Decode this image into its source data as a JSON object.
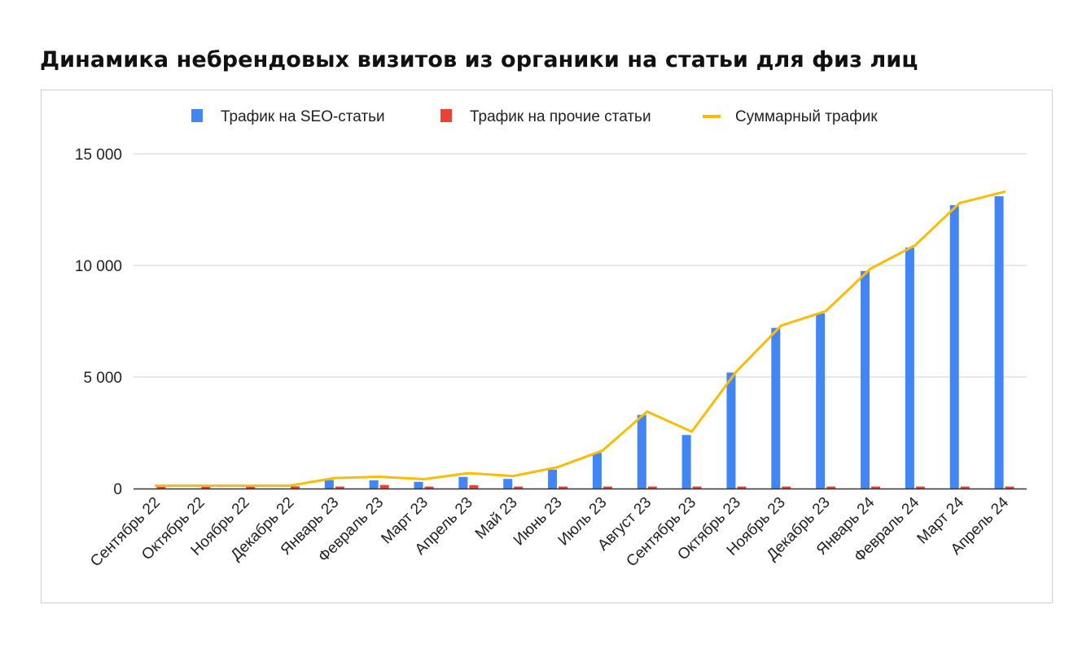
{
  "page": {
    "title": "Динамика небрендовых визитов из органики на статьи для физ лиц"
  },
  "colors": {
    "seo": "#4285F4",
    "other": "#EA4335",
    "total": "#FBBC04",
    "grid": "#d9d9d9",
    "axis": "#333333"
  },
  "chart_data": {
    "type": "bar",
    "title": "Динамика небрендовых визитов из органики на статьи для физ лиц",
    "xlabel": "",
    "ylabel": "",
    "ylim": [
      0,
      15000
    ],
    "grid": true,
    "legend_position": "top",
    "y_ticks": [
      {
        "value": 0,
        "label": "0"
      },
      {
        "value": 5000,
        "label": "5 000"
      },
      {
        "value": 10000,
        "label": "10 000"
      },
      {
        "value": 15000,
        "label": "15 000"
      }
    ],
    "categories": [
      "Сентябрь 22",
      "Октябрь 22",
      "Ноябрь 22",
      "Декабрь 22",
      "Январь 23",
      "Февраль 23",
      "Март 23",
      "Апрель 23",
      "Май 23",
      "Июнь 23",
      "Июль 23",
      "Август 23",
      "Сентябрь 23",
      "Октябрь 23",
      "Ноябрь 23",
      "Декабрь 23",
      "Январь 24",
      "Февраль 24",
      "Март 24",
      "Апрель 24"
    ],
    "series": [
      {
        "name": "Трафик на SEO-статьи",
        "type": "bar",
        "values": [
          0,
          0,
          0,
          0,
          380,
          370,
          300,
          520,
          430,
          850,
          1600,
          3300,
          2400,
          5200,
          7200,
          7850,
          9750,
          10800,
          12700,
          13100
        ]
      },
      {
        "name": "Трафик на прочие статьи",
        "type": "bar",
        "values": [
          110,
          100,
          100,
          100,
          90,
          160,
          90,
          150,
          90,
          90,
          90,
          90,
          90,
          90,
          90,
          90,
          90,
          90,
          90,
          90
        ]
      },
      {
        "name": "Суммарный трафик",
        "type": "line",
        "values": [
          130,
          130,
          130,
          130,
          470,
          530,
          420,
          690,
          560,
          960,
          1700,
          3450,
          2550,
          5250,
          7300,
          7950,
          9850,
          10900,
          12800,
          13300
        ]
      }
    ]
  }
}
